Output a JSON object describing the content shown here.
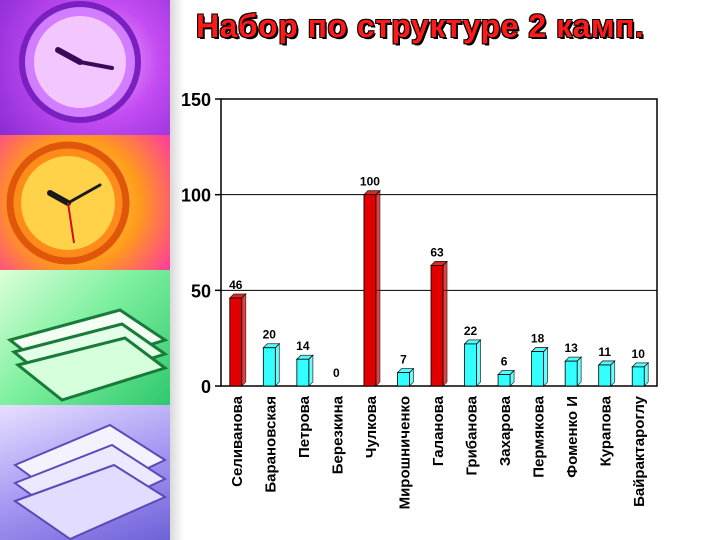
{
  "title": "Набор по структуре 2 камп.",
  "chart_data": {
    "type": "bar",
    "title": "Набор по структуре 2 камп.",
    "xlabel": "",
    "ylabel": "",
    "ylim": [
      0,
      150
    ],
    "yticks": [
      0,
      50,
      100,
      150
    ],
    "grid": true,
    "categories": [
      "Селиванова",
      "Барановская",
      "Петрова",
      "Березкина",
      "Чулкова",
      "Мирошниченко",
      "Галанова",
      "Грибанова",
      "Захарова",
      "Пермякова",
      "Фоменко И",
      "Курапова",
      "Байрактароглу"
    ],
    "values": [
      46,
      20,
      14,
      0,
      100,
      7,
      63,
      22,
      6,
      18,
      13,
      11,
      10
    ],
    "colors": [
      "#e00000",
      "#33ffff",
      "#33ffff",
      "#33ffff",
      "#e00000",
      "#33ffff",
      "#e00000",
      "#33ffff",
      "#33ffff",
      "#33ffff",
      "#33ffff",
      "#33ffff",
      "#33ffff"
    ]
  }
}
